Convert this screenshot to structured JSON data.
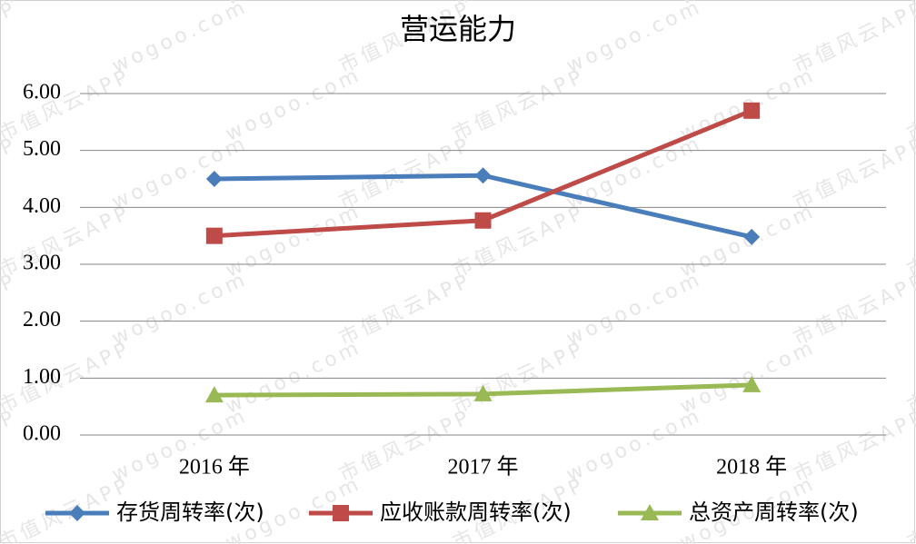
{
  "chart_data": {
    "type": "line",
    "title": "营运能力",
    "categories": [
      "2016 年",
      "2017 年",
      "2018 年"
    ],
    "series": [
      {
        "name": "存货周转率(次)",
        "color": "#4a7ebb",
        "marker": "diamond",
        "values": [
          4.5,
          4.56,
          3.48
        ]
      },
      {
        "name": "应收账款周转率(次)",
        "color": "#be4b48",
        "marker": "square",
        "values": [
          3.5,
          3.77,
          5.7
        ]
      },
      {
        "name": "总资产周转率(次)",
        "color": "#98b954",
        "marker": "triangle",
        "values": [
          0.7,
          0.72,
          0.88
        ]
      }
    ],
    "ylim": [
      0,
      6
    ],
    "yticks": [
      {
        "value": 0,
        "label": "0.00"
      },
      {
        "value": 1,
        "label": "1.00"
      },
      {
        "value": 2,
        "label": "2.00"
      },
      {
        "value": 3,
        "label": "3.00"
      },
      {
        "value": 4,
        "label": "4.00"
      },
      {
        "value": 5,
        "label": "5.00"
      },
      {
        "value": 6,
        "label": "6.00"
      }
    ],
    "grid": true,
    "legend": "bottom",
    "watermark": [
      "市值风云APP",
      "wogoo.com"
    ]
  }
}
